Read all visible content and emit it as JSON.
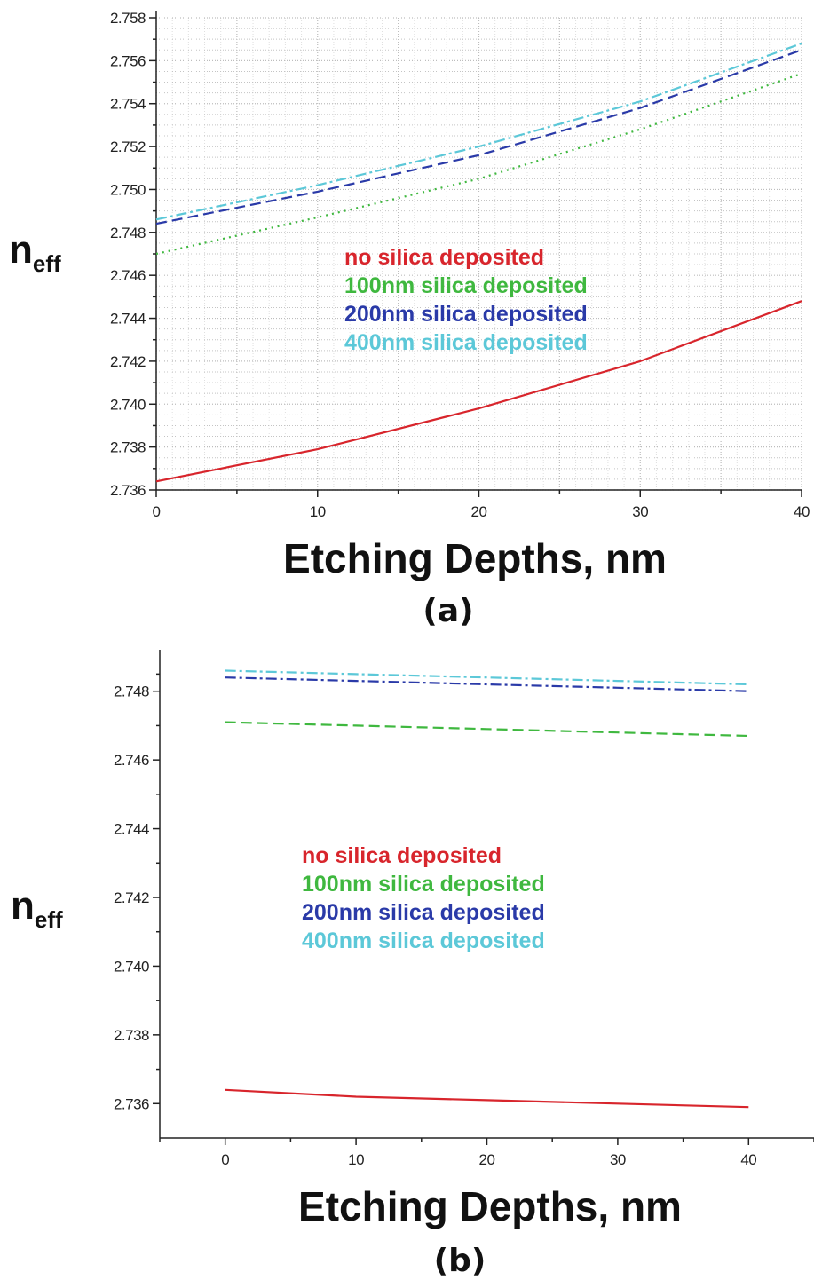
{
  "chart_data": [
    {
      "panel": "(a)",
      "type": "line",
      "xlabel": "Etching Depths, nm",
      "ylabel_main": "n",
      "ylabel_sub": "eff",
      "xlim": [
        0,
        40
      ],
      "ylim": [
        2.736,
        2.758
      ],
      "xticks": [
        0,
        10,
        20,
        30,
        40
      ],
      "xtick_labels": [
        "0",
        "10",
        "20",
        "30",
        "40"
      ],
      "yticks": [
        2.736,
        2.738,
        2.74,
        2.742,
        2.744,
        2.746,
        2.748,
        2.75,
        2.752,
        2.754,
        2.756,
        2.758
      ],
      "ytick_labels": [
        "2.736",
        "2.738",
        "2.740",
        "2.742",
        "2.744",
        "2.746",
        "2.748",
        "2.750",
        "2.752",
        "2.754",
        "2.756",
        "2.758"
      ],
      "grid": true,
      "legend_position": "center",
      "series": [
        {
          "name": "no silica deposited",
          "color": "#d8252c",
          "style": "solid",
          "x": [
            0,
            10,
            20,
            30,
            40
          ],
          "y": [
            2.7364,
            2.7379,
            2.7398,
            2.742,
            2.7448
          ]
        },
        {
          "name": "100nm silica deposited",
          "color": "#3fb83f",
          "style": "dotted",
          "x": [
            0,
            10,
            20,
            30,
            40
          ],
          "y": [
            2.747,
            2.7487,
            2.7505,
            2.7528,
            2.7554
          ]
        },
        {
          "name": "200nm silica deposited",
          "color": "#2a3aa8",
          "style": "dashed",
          "x": [
            0,
            10,
            20,
            30,
            40
          ],
          "y": [
            2.7484,
            2.7499,
            2.7516,
            2.7538,
            2.7565
          ]
        },
        {
          "name": "400nm silica deposited",
          "color": "#5cc8d8",
          "style": "dashdot",
          "x": [
            0,
            10,
            20,
            30,
            40
          ],
          "y": [
            2.7486,
            2.7502,
            2.752,
            2.7541,
            2.7568
          ]
        }
      ]
    },
    {
      "panel": "(b)",
      "type": "line",
      "xlabel": "Etching Depths, nm",
      "ylabel_main": "n",
      "ylabel_sub": "eff",
      "xlim": [
        -5,
        45
      ],
      "ylim": [
        2.735,
        2.749
      ],
      "xticks": [
        0,
        10,
        20,
        30,
        40
      ],
      "xtick_labels": [
        "0",
        "10",
        "20",
        "30",
        "40"
      ],
      "yticks": [
        2.736,
        2.738,
        2.74,
        2.742,
        2.744,
        2.746,
        2.748
      ],
      "ytick_labels": [
        "2.736",
        "2.738",
        "2.740",
        "2.742",
        "2.744",
        "2.746",
        "2.748"
      ],
      "grid": false,
      "legend_position": "center",
      "series": [
        {
          "name": "no silica deposited",
          "color": "#d8252c",
          "style": "solid",
          "x": [
            0,
            10,
            20,
            30,
            40
          ],
          "y": [
            2.7364,
            2.7362,
            2.7361,
            2.736,
            2.7359
          ]
        },
        {
          "name": "100nm silica deposited",
          "color": "#3fb83f",
          "style": "dashed",
          "x": [
            0,
            10,
            20,
            30,
            40
          ],
          "y": [
            2.7471,
            2.747,
            2.7469,
            2.7468,
            2.7467
          ]
        },
        {
          "name": "200nm silica deposited",
          "color": "#2a3aa8",
          "style": "dashdot",
          "x": [
            0,
            10,
            20,
            30,
            40
          ],
          "y": [
            2.7484,
            2.7483,
            2.7482,
            2.7481,
            2.748
          ]
        },
        {
          "name": "400nm silica deposited",
          "color": "#5cc8d8",
          "style": "dashdot",
          "x": [
            0,
            10,
            20,
            30,
            40
          ],
          "y": [
            2.7486,
            2.7485,
            2.7484,
            2.7483,
            2.7482
          ]
        }
      ]
    }
  ]
}
